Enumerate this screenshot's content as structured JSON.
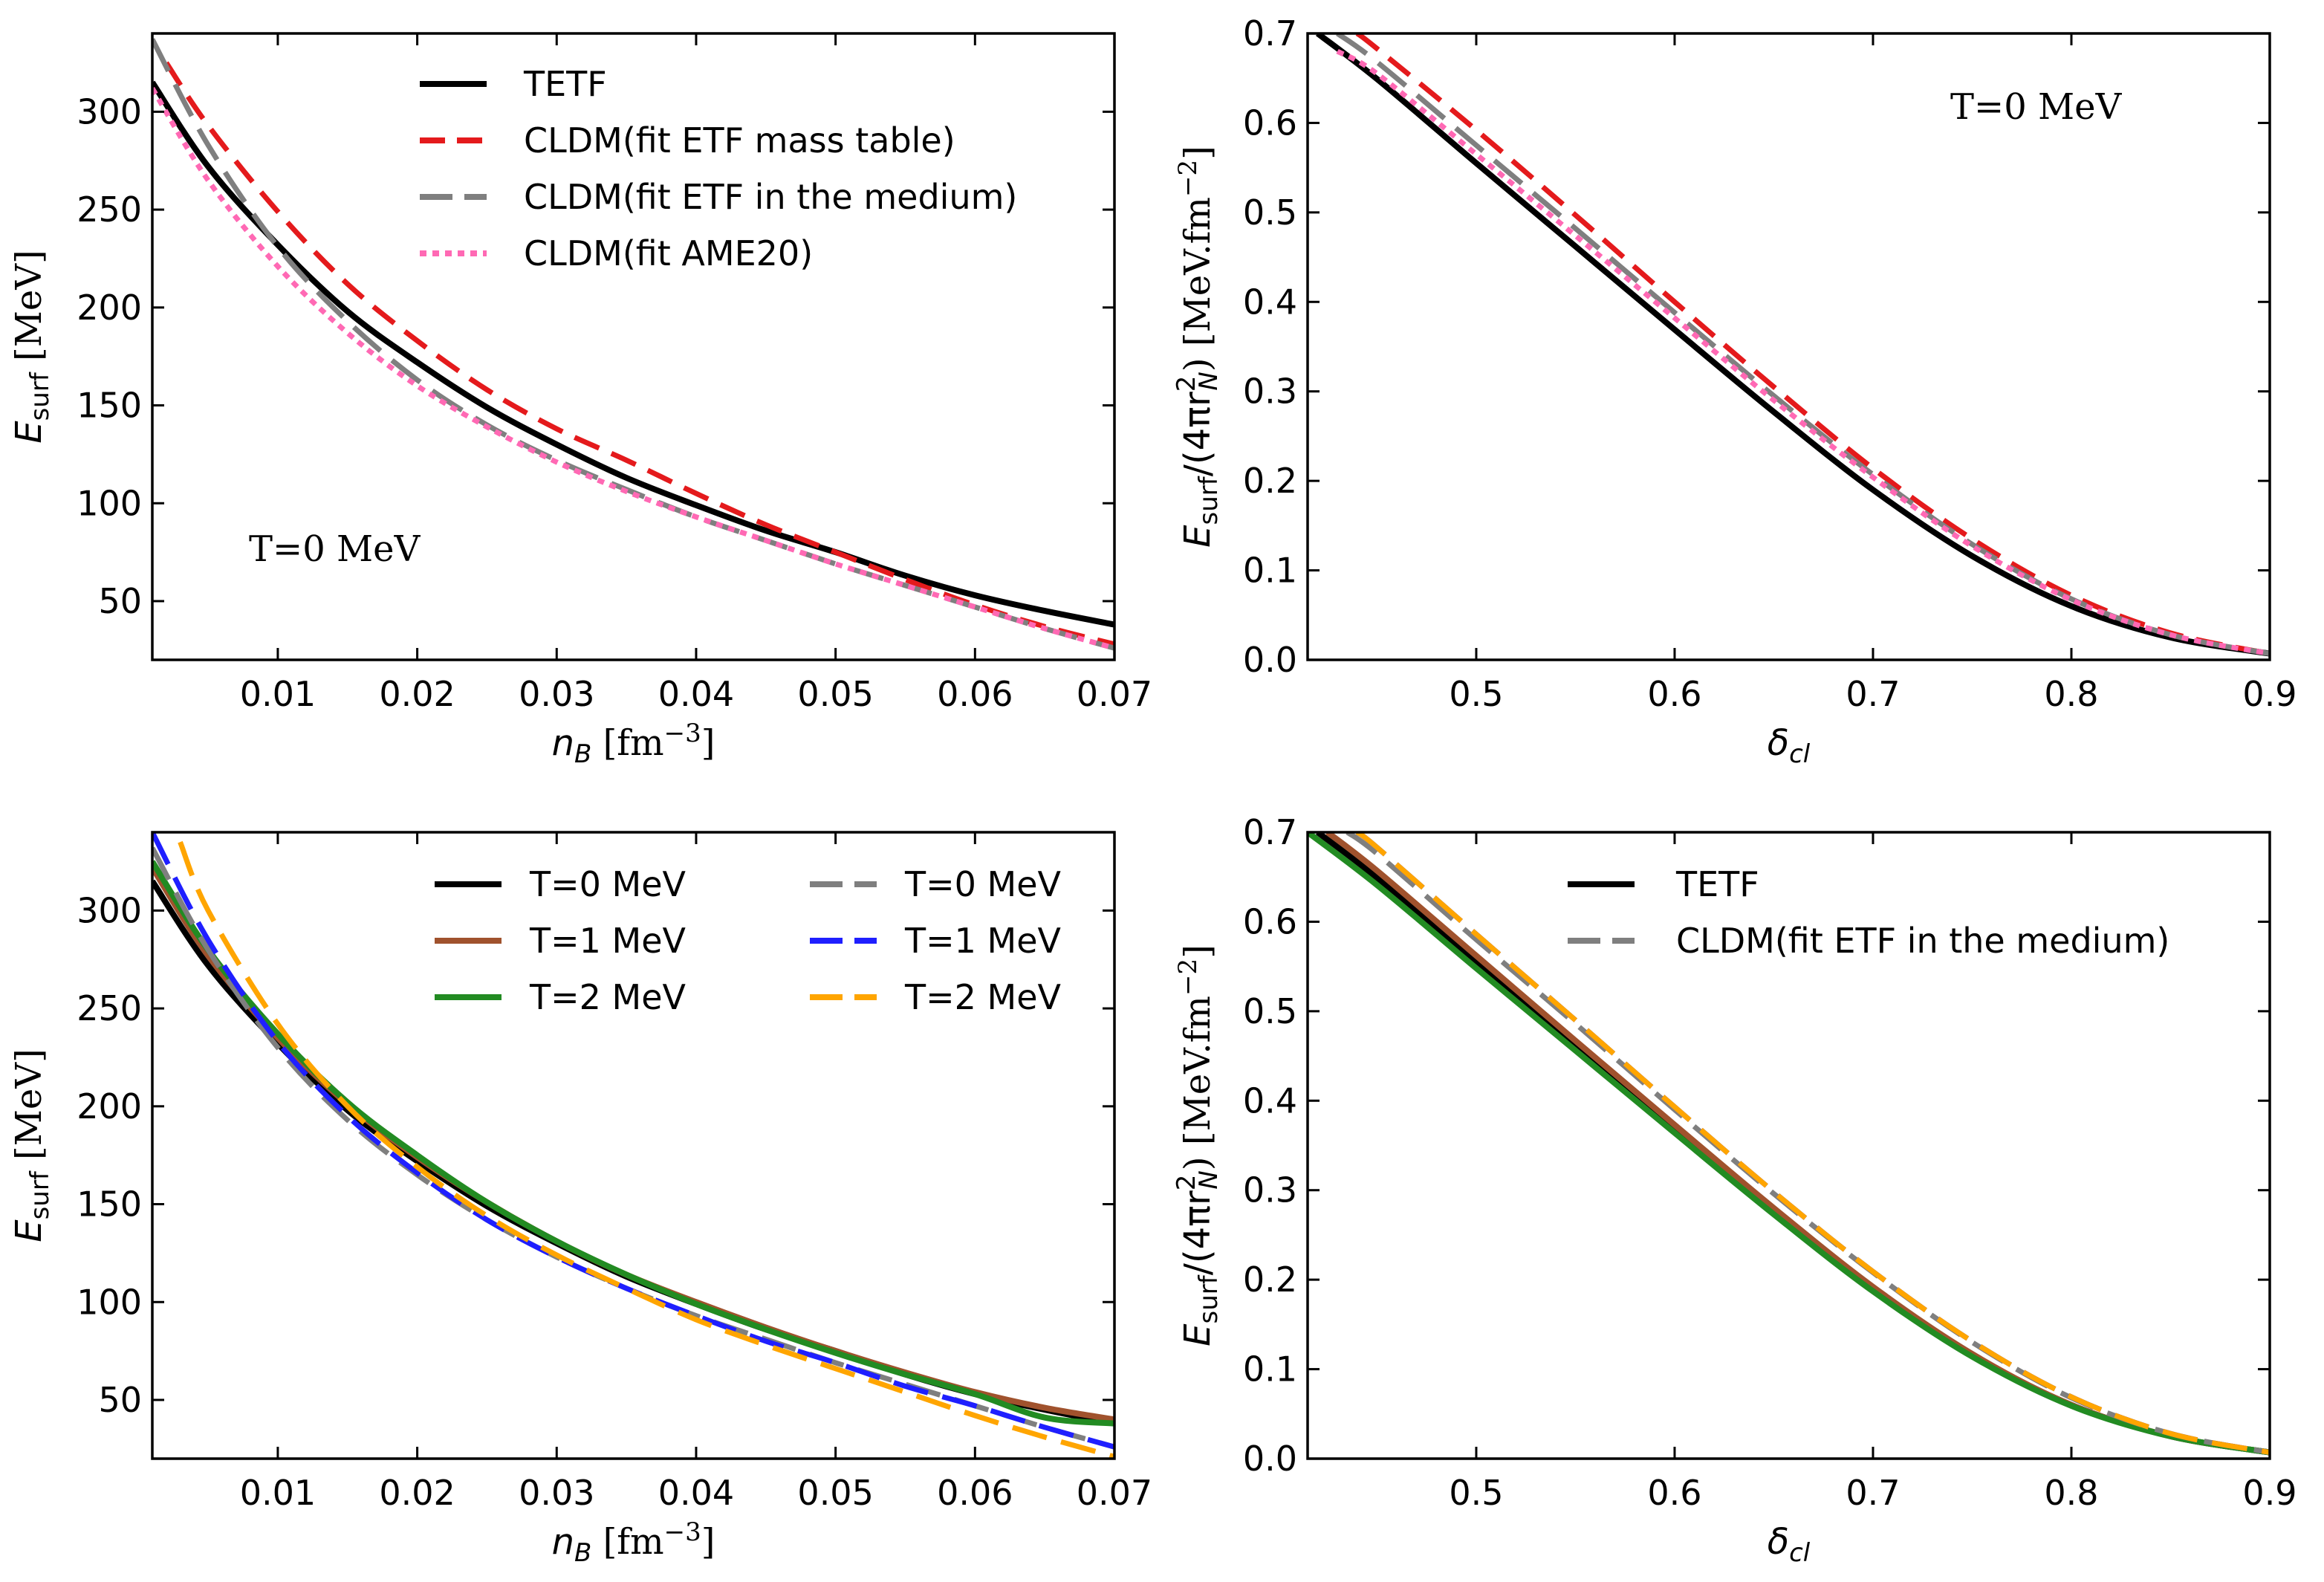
{
  "chart_data": [
    {
      "id": "tl",
      "type": "line",
      "xlim": [
        0.001,
        0.07
      ],
      "ylim": [
        20,
        340
      ],
      "xticks": [
        "0.01",
        "0.02",
        "0.03",
        "0.04",
        "0.05",
        "0.06",
        "0.07"
      ],
      "xtick_values": [
        0.01,
        0.02,
        0.03,
        0.04,
        0.05,
        0.06,
        0.07
      ],
      "yticks": [
        "50",
        "100",
        "150",
        "200",
        "250",
        "300"
      ],
      "ytick_values": [
        50,
        100,
        150,
        200,
        250,
        300
      ],
      "xlabel": {
        "main": "n",
        "sub": "B",
        "unit": "[fm",
        "exp": "−3",
        "close": "]"
      },
      "ylabel": {
        "main": "E",
        "sub": "surf",
        "unit": "[MeV]"
      },
      "annotation": "T=0 MeV",
      "legend_position": "top-right",
      "series": [
        {
          "name": "TETF",
          "color": "#000000",
          "style": "solid",
          "x": [
            0.001,
            0.005,
            0.01,
            0.015,
            0.02,
            0.025,
            0.03,
            0.035,
            0.04,
            0.045,
            0.05,
            0.055,
            0.06,
            0.065,
            0.07
          ],
          "y": [
            315,
            272,
            232,
            198,
            172,
            149,
            130,
            113,
            99,
            86,
            75,
            63,
            53,
            45,
            38
          ]
        },
        {
          "name": "CLDM(fit ETF mass table)",
          "color": "#e41a1c",
          "style": "dash",
          "x": [
            0.002,
            0.005,
            0.01,
            0.015,
            0.02,
            0.025,
            0.03,
            0.035,
            0.04,
            0.045,
            0.05,
            0.055,
            0.06,
            0.065,
            0.07
          ],
          "y": [
            325,
            293,
            249,
            212,
            183,
            158,
            138,
            122,
            105,
            89,
            75,
            61,
            48,
            37,
            28
          ]
        },
        {
          "name": "CLDM(fit ETF in the medium)",
          "color": "#7f7f7f",
          "style": "longdash",
          "x": [
            0.001,
            0.005,
            0.01,
            0.015,
            0.02,
            0.025,
            0.03,
            0.035,
            0.04,
            0.045,
            0.05,
            0.055,
            0.06,
            0.065,
            0.07
          ],
          "y": [
            337,
            283,
            231,
            193,
            163,
            140,
            122,
            107,
            93,
            81,
            69,
            58,
            47,
            36,
            26
          ]
        },
        {
          "name": "CLDM(fit AME20)",
          "color": "#ff69b4",
          "style": "dot",
          "x": [
            0.001,
            0.005,
            0.01,
            0.015,
            0.02,
            0.025,
            0.03,
            0.035,
            0.04,
            0.045,
            0.05,
            0.055,
            0.06,
            0.065,
            0.07
          ],
          "y": [
            312,
            265,
            221,
            187,
            160,
            139,
            121,
            106,
            93,
            81,
            69,
            58,
            47,
            36,
            26
          ]
        }
      ]
    },
    {
      "id": "tr",
      "type": "line",
      "xlim": [
        0.415,
        0.9
      ],
      "ylim": [
        0,
        0.7
      ],
      "xticks": [
        "0.5",
        "0.6",
        "0.7",
        "0.8",
        "0.9"
      ],
      "xtick_values": [
        0.5,
        0.6,
        0.7,
        0.8,
        0.9
      ],
      "yticks": [
        "0.0",
        "0.1",
        "0.2",
        "0.3",
        "0.4",
        "0.5",
        "0.6",
        "0.7"
      ],
      "ytick_values": [
        0,
        0.1,
        0.2,
        0.3,
        0.4,
        0.5,
        0.6,
        0.7
      ],
      "xlabel": {
        "main": "δ",
        "sub": "cl"
      },
      "ylabel": {
        "main": "E",
        "sub": "surf",
        "mid": "/(4πr",
        "sub2": "N",
        "sup2": "2",
        "unit": ") [MeV.fm",
        "exp": "−2",
        "close": "]"
      },
      "annotation": "T=0 MeV",
      "series": [
        {
          "name": "TETF",
          "color": "#000000",
          "style": "solid",
          "x": [
            0.42,
            0.45,
            0.5,
            0.55,
            0.6,
            0.65,
            0.7,
            0.75,
            0.8,
            0.85,
            0.9
          ],
          "y": [
            0.7,
            0.649,
            0.555,
            0.462,
            0.369,
            0.277,
            0.19,
            0.116,
            0.06,
            0.025,
            0.007
          ]
        },
        {
          "name": "CLDM(fit ETF mass table)",
          "color": "#e41a1c",
          "style": "dash",
          "x": [
            0.44,
            0.45,
            0.5,
            0.55,
            0.6,
            0.65,
            0.7,
            0.75,
            0.8,
            0.85,
            0.9
          ],
          "y": [
            0.7,
            0.683,
            0.592,
            0.497,
            0.4,
            0.305,
            0.214,
            0.135,
            0.072,
            0.03,
            0.007
          ]
        },
        {
          "name": "CLDM(fit ETF in the medium)",
          "color": "#7f7f7f",
          "style": "longdash",
          "x": [
            0.43,
            0.45,
            0.5,
            0.55,
            0.6,
            0.65,
            0.7,
            0.75,
            0.8,
            0.85,
            0.9
          ],
          "y": [
            0.7,
            0.668,
            0.575,
            0.482,
            0.388,
            0.295,
            0.207,
            0.129,
            0.068,
            0.028,
            0.007
          ]
        },
        {
          "name": "CLDM(fit AME20)",
          "color": "#ff69b4",
          "style": "dot",
          "x": [
            0.43,
            0.45,
            0.5,
            0.55,
            0.6,
            0.65,
            0.7,
            0.75,
            0.8,
            0.85,
            0.9
          ],
          "y": [
            0.68,
            0.655,
            0.565,
            0.474,
            0.382,
            0.29,
            0.204,
            0.127,
            0.067,
            0.028,
            0.007
          ]
        }
      ]
    },
    {
      "id": "bl",
      "type": "line",
      "xlim": [
        0.001,
        0.07
      ],
      "ylim": [
        20,
        340
      ],
      "xticks": [
        "0.01",
        "0.02",
        "0.03",
        "0.04",
        "0.05",
        "0.06",
        "0.07"
      ],
      "xtick_values": [
        0.01,
        0.02,
        0.03,
        0.04,
        0.05,
        0.06,
        0.07
      ],
      "yticks": [
        "50",
        "100",
        "150",
        "200",
        "250",
        "300"
      ],
      "ytick_values": [
        50,
        100,
        150,
        200,
        250,
        300
      ],
      "xlabel": {
        "main": "n",
        "sub": "B",
        "unit": "[fm",
        "exp": "−3",
        "close": "]"
      },
      "ylabel": {
        "main": "E",
        "sub": "surf",
        "unit": "[MeV]"
      },
      "legend_position": "top-right",
      "legend_columns": 2,
      "series": [
        {
          "name": "T=0 MeV",
          "color": "#000000",
          "style": "solid",
          "x": [
            0.001,
            0.005,
            0.01,
            0.015,
            0.02,
            0.025,
            0.03,
            0.035,
            0.04,
            0.045,
            0.05,
            0.055,
            0.06,
            0.065,
            0.07
          ],
          "y": [
            315,
            272,
            232,
            198,
            172,
            149,
            130,
            113,
            99,
            86,
            75,
            63,
            53,
            45,
            38
          ]
        },
        {
          "name": "T=1 MeV",
          "color": "#a0522d",
          "style": "solid",
          "x": [
            0.001,
            0.005,
            0.01,
            0.015,
            0.02,
            0.025,
            0.03,
            0.035,
            0.04,
            0.045,
            0.05,
            0.055,
            0.06,
            0.065,
            0.07
          ],
          "y": [
            322,
            277,
            235,
            201,
            174,
            151,
            131,
            114,
            100,
            87,
            75,
            64,
            54,
            46,
            40
          ]
        },
        {
          "name": "T=2 MeV",
          "color": "#228b22",
          "style": "solid",
          "x": [
            0.001,
            0.005,
            0.01,
            0.015,
            0.02,
            0.025,
            0.03,
            0.035,
            0.04,
            0.045,
            0.05,
            0.055,
            0.06,
            0.065,
            0.07
          ],
          "y": [
            325,
            280,
            237,
            202,
            175,
            151,
            131,
            114,
            99,
            86,
            74,
            63,
            53,
            41,
            38
          ]
        },
        {
          "name": "T=0 MeV",
          "color": "#7f7f7f",
          "style": "longdash",
          "x": [
            0.001,
            0.005,
            0.01,
            0.015,
            0.02,
            0.025,
            0.03,
            0.035,
            0.04,
            0.045,
            0.05,
            0.055,
            0.06,
            0.065,
            0.07
          ],
          "y": [
            332,
            280,
            230,
            193,
            165,
            142,
            123,
            107,
            93,
            81,
            69,
            58,
            47,
            36,
            26
          ]
        },
        {
          "name": "T=1 MeV",
          "color": "#1f1fff",
          "style": "longdash",
          "x": [
            0.001,
            0.005,
            0.01,
            0.015,
            0.02,
            0.025,
            0.03,
            0.035,
            0.04,
            0.045,
            0.05,
            0.055,
            0.06,
            0.065,
            0.07
          ],
          "y": [
            340,
            285,
            233,
            195,
            166,
            142,
            123,
            107,
            93,
            80,
            69,
            57,
            47,
            36,
            26
          ]
        },
        {
          "name": "T=2 MeV",
          "color": "#ffa500",
          "style": "longdash",
          "x": [
            0.003,
            0.005,
            0.01,
            0.015,
            0.02,
            0.025,
            0.03,
            0.035,
            0.04,
            0.045,
            0.05,
            0.055,
            0.06,
            0.065,
            0.07
          ],
          "y": [
            335,
            300,
            242,
            200,
            169,
            144,
            124,
            107,
            91,
            78,
            66,
            54,
            42,
            31,
            21
          ]
        }
      ]
    },
    {
      "id": "br",
      "type": "line",
      "xlim": [
        0.415,
        0.9
      ],
      "ylim": [
        0,
        0.7
      ],
      "xticks": [
        "0.5",
        "0.6",
        "0.7",
        "0.8",
        "0.9"
      ],
      "xtick_values": [
        0.5,
        0.6,
        0.7,
        0.8,
        0.9
      ],
      "yticks": [
        "0.0",
        "0.1",
        "0.2",
        "0.3",
        "0.4",
        "0.5",
        "0.6",
        "0.7"
      ],
      "ytick_values": [
        0,
        0.1,
        0.2,
        0.3,
        0.4,
        0.5,
        0.6,
        0.7
      ],
      "xlabel": {
        "main": "δ",
        "sub": "cl"
      },
      "ylabel": {
        "main": "E",
        "sub": "surf",
        "mid": "/(4πr",
        "sub2": "N",
        "sup2": "2",
        "unit": ") [MeV.fm",
        "exp": "−2",
        "close": "]"
      },
      "legend_position": "top-right",
      "legend_entries": [
        {
          "name": "TETF",
          "color": "#000000",
          "style": "solid"
        },
        {
          "name": "CLDM(fit ETF in the medium)",
          "color": "#7f7f7f",
          "style": "longdash"
        }
      ],
      "series": [
        {
          "name": "TETF T=0 MeV",
          "color": "#000000",
          "style": "solid",
          "x": [
            0.42,
            0.45,
            0.5,
            0.55,
            0.6,
            0.65,
            0.7,
            0.75,
            0.8,
            0.85,
            0.9
          ],
          "y": [
            0.7,
            0.649,
            0.555,
            0.462,
            0.369,
            0.277,
            0.19,
            0.116,
            0.06,
            0.025,
            0.007
          ]
        },
        {
          "name": "TETF T=1 MeV",
          "color": "#a0522d",
          "style": "solid",
          "x": [
            0.425,
            0.45,
            0.5,
            0.55,
            0.6,
            0.65,
            0.7,
            0.75,
            0.8,
            0.85,
            0.9
          ],
          "y": [
            0.7,
            0.657,
            0.562,
            0.467,
            0.373,
            0.28,
            0.192,
            0.117,
            0.06,
            0.025,
            0.007
          ]
        },
        {
          "name": "TETF T=2 MeV",
          "color": "#228b22",
          "style": "solid",
          "x": [
            0.415,
            0.45,
            0.5,
            0.55,
            0.6,
            0.65,
            0.7,
            0.75,
            0.8,
            0.85,
            0.9
          ],
          "y": [
            0.7,
            0.641,
            0.548,
            0.456,
            0.364,
            0.273,
            0.187,
            0.114,
            0.059,
            0.025,
            0.007
          ]
        },
        {
          "name": "CLDM T=0 MeV",
          "color": "#7f7f7f",
          "style": "longdash",
          "x": [
            0.435,
            0.45,
            0.5,
            0.55,
            0.6,
            0.65,
            0.7,
            0.75,
            0.8,
            0.85,
            0.9
          ],
          "y": [
            0.7,
            0.676,
            0.58,
            0.486,
            0.39,
            0.296,
            0.208,
            0.13,
            0.068,
            0.028,
            0.007
          ]
        },
        {
          "name": "CLDM T=1 MeV",
          "color": "#1f1fff",
          "style": "longdash",
          "x": [
            0.44,
            0.45,
            0.5,
            0.55,
            0.6,
            0.65,
            0.7,
            0.75,
            0.8,
            0.85,
            0.9
          ],
          "y": [
            0.7,
            0.683,
            0.586,
            0.49,
            0.393,
            0.298,
            0.209,
            0.131,
            0.069,
            0.028,
            0.007
          ]
        },
        {
          "name": "CLDM T=2 MeV",
          "color": "#ffa500",
          "style": "longdash",
          "x": [
            0.44,
            0.45,
            0.5,
            0.55,
            0.6,
            0.65,
            0.7,
            0.75,
            0.8,
            0.85,
            0.9
          ],
          "y": [
            0.7,
            0.683,
            0.586,
            0.49,
            0.393,
            0.298,
            0.209,
            0.131,
            0.069,
            0.028,
            0.007
          ]
        }
      ]
    }
  ]
}
